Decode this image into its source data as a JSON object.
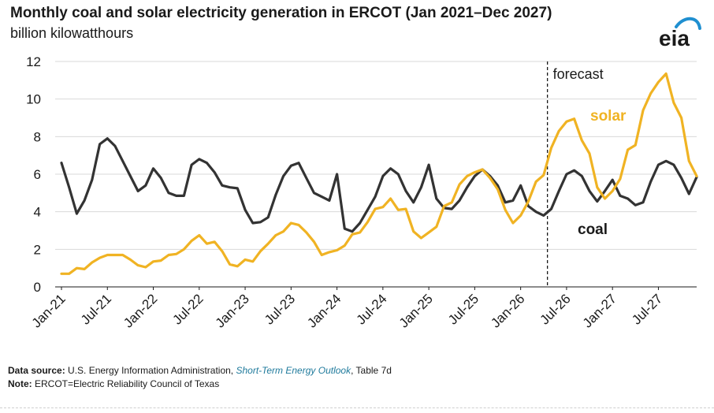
{
  "header": {
    "title": "Monthly coal and solar electricity generation in ERCOT (Jan 2021–Dec 2027)",
    "subtitle": "billion kilowatthours",
    "logo_text": "eia"
  },
  "colors": {
    "coal": "#333333",
    "solar": "#f0b323",
    "logo_text": "#1a1a1a",
    "logo_arc": "#1f8fd0",
    "link": "#1f7a9c"
  },
  "chart_data": {
    "type": "line",
    "title": "Monthly coal and solar electricity generation in ERCOT (Jan 2021–Dec 2027)",
    "ylabel": "billion kilowatthours",
    "ylim": [
      0,
      12
    ],
    "yticks": [
      0,
      2,
      4,
      6,
      8,
      10,
      12
    ],
    "x_start": "2021-01",
    "x_end": "2027-12",
    "xtick_labels": [
      "Jan-21",
      "Jul-21",
      "Jan-22",
      "Jul-22",
      "Jan-23",
      "Jul-23",
      "Jan-24",
      "Jul-24",
      "Jan-25",
      "Jul-25",
      "Jan-26",
      "Jul-26",
      "Jan-27",
      "Jul-27"
    ],
    "forecast_start": "2026-05",
    "forecast_label": "forecast",
    "grid": "horizontal",
    "series": [
      {
        "name": "coal",
        "color": "#333333",
        "values": [
          6.6,
          5.3,
          3.9,
          4.6,
          5.7,
          7.6,
          7.9,
          7.5,
          6.7,
          5.9,
          5.1,
          5.4,
          6.3,
          5.8,
          5.0,
          4.85,
          4.85,
          6.5,
          6.8,
          6.6,
          6.1,
          5.4,
          5.3,
          5.25,
          4.1,
          3.4,
          3.45,
          3.7,
          4.9,
          5.9,
          6.45,
          6.6,
          5.8,
          5.0,
          4.8,
          4.6,
          6.0,
          3.1,
          2.95,
          3.4,
          4.1,
          4.8,
          5.9,
          6.3,
          6.0,
          5.1,
          4.5,
          5.3,
          6.5,
          4.7,
          4.2,
          4.15,
          4.6,
          5.3,
          5.9,
          6.25,
          5.9,
          5.4,
          4.5,
          4.6,
          5.4,
          4.3,
          4.0,
          3.8,
          4.15,
          5.1,
          6.0,
          6.2,
          5.9,
          5.1,
          4.55,
          5.1,
          5.7,
          4.85,
          4.7,
          4.35,
          4.5,
          5.6,
          6.5,
          6.7,
          6.5,
          5.8,
          4.95,
          5.85
        ]
      },
      {
        "name": "solar",
        "color": "#f0b323",
        "values": [
          0.7,
          0.7,
          1.0,
          0.95,
          1.3,
          1.55,
          1.7,
          1.7,
          1.7,
          1.45,
          1.15,
          1.05,
          1.35,
          1.4,
          1.7,
          1.75,
          2.0,
          2.45,
          2.75,
          2.3,
          2.4,
          1.9,
          1.2,
          1.1,
          1.45,
          1.35,
          1.9,
          2.3,
          2.75,
          2.95,
          3.4,
          3.3,
          2.9,
          2.4,
          1.7,
          1.85,
          1.95,
          2.2,
          2.8,
          2.9,
          3.45,
          4.15,
          4.25,
          4.7,
          4.1,
          4.15,
          2.95,
          2.6,
          2.9,
          3.2,
          4.3,
          4.5,
          5.45,
          5.9,
          6.1,
          6.25,
          5.8,
          5.2,
          4.1,
          3.4,
          3.8,
          4.55,
          5.6,
          5.95,
          7.4,
          8.3,
          8.8,
          8.95,
          7.8,
          7.1,
          5.3,
          4.7,
          5.1,
          5.75,
          7.3,
          7.55,
          9.4,
          10.3,
          10.9,
          11.35,
          9.8,
          9.0,
          6.7,
          5.9
        ]
      }
    ],
    "series_labels": [
      {
        "series": "solar",
        "text": "solar"
      },
      {
        "series": "coal",
        "text": "coal"
      }
    ]
  },
  "footnotes": {
    "source_label": "Data source:",
    "source_text": " U.S. Energy Information Administration, ",
    "source_link": "Short-Term Energy Outlook",
    "source_suffix": ", Table 7d",
    "note_label": "Note:",
    "note_text": " ERCOT=Electric Reliability Council of Texas"
  }
}
